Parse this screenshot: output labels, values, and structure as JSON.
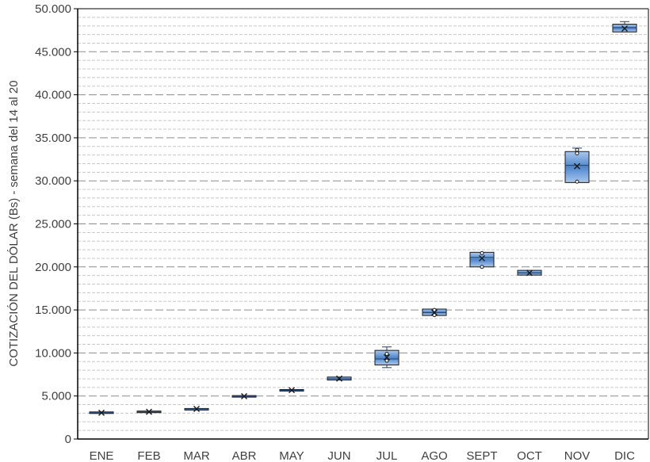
{
  "chart_data": {
    "type": "box",
    "title": "",
    "xlabel": "",
    "ylabel": "COTIZACIÓN DEL DÓLAR (Bs) - semana del 14 al 20",
    "ylim": [
      0,
      50000
    ],
    "y_major_step": 5000,
    "y_minor_step": 1000,
    "grid": "on",
    "legend": "none",
    "colors": {
      "box_fill": "#6f9fd8",
      "box_edge": "#1f3f6f",
      "axis": "#000000",
      "grid_major": "#8c8c8c",
      "grid_minor": "#c8c8c8"
    },
    "y_tick_labels": [
      "0",
      "5.000",
      "10.000",
      "15.000",
      "20.000",
      "25.000",
      "30.000",
      "35.000",
      "40.000",
      "45.000",
      "50.000"
    ],
    "y_tick_values": [
      0,
      5000,
      10000,
      15000,
      20000,
      25000,
      30000,
      35000,
      40000,
      45000,
      50000
    ],
    "categories": [
      "ENE",
      "FEB",
      "MAR",
      "ABR",
      "MAY",
      "JUN",
      "JUL",
      "AGO",
      "SEPT",
      "OCT",
      "NOV",
      "DIC"
    ],
    "boxes": [
      {
        "min": 3000,
        "q1": 3000,
        "median": 3050,
        "q3": 3150,
        "max": 3150,
        "mean": 3050,
        "points": []
      },
      {
        "min": 3100,
        "q1": 3100,
        "median": 3150,
        "q3": 3250,
        "max": 3250,
        "mean": 3170,
        "points": []
      },
      {
        "min": 3450,
        "q1": 3450,
        "median": 3500,
        "q3": 3550,
        "max": 3550,
        "mean": 3500,
        "points": []
      },
      {
        "min": 4900,
        "q1": 4900,
        "median": 4950,
        "q3": 5050,
        "max": 5050,
        "mean": 4970,
        "points": []
      },
      {
        "min": 5600,
        "q1": 5600,
        "median": 5680,
        "q3": 5750,
        "max": 5750,
        "mean": 5680,
        "points": []
      },
      {
        "min": 6850,
        "q1": 6850,
        "median": 7000,
        "q3": 7200,
        "max": 7200,
        "mean": 7020,
        "points": []
      },
      {
        "min": 8300,
        "q1": 8600,
        "median": 9300,
        "q3": 10300,
        "max": 10700,
        "mean": 9500,
        "points": [
          9100,
          9900
        ]
      },
      {
        "min": 14350,
        "q1": 14350,
        "median": 14700,
        "q3": 15100,
        "max": 15100,
        "mean": 14700,
        "points": [
          14400,
          15000
        ]
      },
      {
        "min": 20000,
        "q1": 20000,
        "median": 21100,
        "q3": 21700,
        "max": 21700,
        "mean": 21000,
        "points": [
          20000,
          21600
        ]
      },
      {
        "min": 19050,
        "q1": 19050,
        "median": 19300,
        "q3": 19600,
        "max": 19600,
        "mean": 19300,
        "points": []
      },
      {
        "min": 29800,
        "q1": 29800,
        "median": 31800,
        "q3": 33400,
        "max": 33800,
        "mean": 31700,
        "points": [
          29900,
          33200,
          33600
        ]
      },
      {
        "min": 47300,
        "q1": 47300,
        "median": 47800,
        "q3": 48200,
        "max": 48500,
        "mean": 47700,
        "points": []
      }
    ]
  }
}
